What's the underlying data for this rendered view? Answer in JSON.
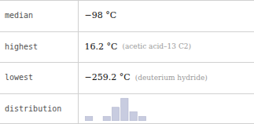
{
  "chart_data": {
    "type": "bar",
    "rows": [
      {
        "label": "median",
        "value": "−98 °C"
      },
      {
        "label": "highest",
        "value": "16.2 °C",
        "note": "(acetic acid–13 C2)"
      },
      {
        "label": "lowest",
        "value": "−259.2 °C",
        "note": "(deuterium hydride)"
      },
      {
        "label": "distribution"
      }
    ],
    "categories": [
      null,
      null,
      null,
      null,
      null,
      null,
      null,
      null,
      null,
      null
    ],
    "values": [
      1,
      0,
      1,
      3,
      5,
      2,
      1,
      0,
      0,
      0
    ],
    "color": "#c8cce0",
    "ylim": [
      0,
      5.3
    ],
    "tick_labels": false,
    "grid": false
  }
}
